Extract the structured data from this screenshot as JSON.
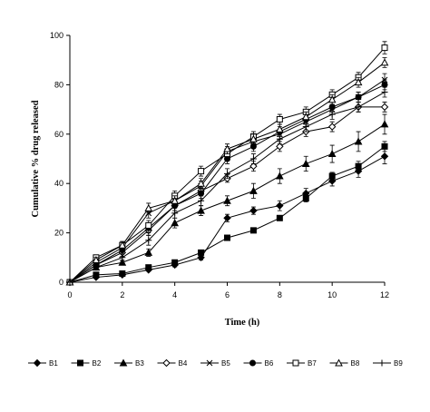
{
  "chart_data": {
    "type": "line",
    "title": "",
    "xlabel": "Time (h)",
    "ylabel": "Cumulative % drug released",
    "xlim": [
      0,
      12
    ],
    "ylim": [
      0,
      100
    ],
    "xticks": [
      "0",
      "2",
      "4",
      "6",
      "8",
      "10",
      "12"
    ],
    "yticks": [
      "0",
      "20",
      "40",
      "60",
      "80",
      "100"
    ],
    "grid": false,
    "legend_position": "bottom",
    "x": [
      0,
      1,
      2,
      3,
      4,
      5,
      6,
      7,
      8,
      9,
      10,
      11,
      12
    ],
    "series": [
      {
        "name": "B1",
        "marker": "filled-diamond",
        "values": [
          0,
          2,
          3,
          5,
          7,
          10,
          26,
          29,
          31,
          36,
          41,
          45,
          51
        ],
        "errors": [
          0,
          0.5,
          0.5,
          0.5,
          0.8,
          1,
          1.5,
          1.5,
          2,
          2,
          2,
          2.5,
          3
        ]
      },
      {
        "name": "B2",
        "marker": "filled-square",
        "values": [
          0,
          3,
          3.5,
          6,
          8,
          12,
          18,
          21,
          26,
          34,
          43,
          47,
          55
        ],
        "errors": [
          0,
          0.5,
          0.5,
          0.5,
          0.5,
          0.8,
          1,
          1,
          1,
          1.5,
          1.5,
          2,
          2
        ]
      },
      {
        "name": "B3",
        "marker": "filled-triangle",
        "values": [
          0,
          6,
          8,
          12,
          24,
          29,
          33,
          37,
          43,
          48,
          52,
          57,
          64
        ],
        "errors": [
          0,
          1,
          1,
          1.5,
          2,
          2,
          2,
          3,
          3,
          3,
          3.5,
          4,
          4
        ]
      },
      {
        "name": "B4",
        "marker": "open-diamond",
        "values": [
          0,
          7,
          12,
          21,
          31,
          37,
          42,
          47,
          55,
          61,
          63,
          71,
          71
        ],
        "errors": [
          0,
          1,
          1.5,
          2,
          2,
          2,
          1.5,
          2,
          2,
          2,
          2,
          2,
          2
        ]
      },
      {
        "name": "B5",
        "marker": "x",
        "values": [
          0,
          8,
          14,
          28,
          33,
          39,
          53,
          57,
          60,
          65,
          70,
          75,
          82
        ],
        "errors": [
          0,
          1,
          1.5,
          2,
          2,
          2,
          2,
          2,
          2,
          2,
          2,
          2,
          2.5
        ]
      },
      {
        "name": "B6",
        "marker": "filled-circle",
        "values": [
          0,
          7,
          13,
          22,
          31,
          36,
          50,
          55,
          61,
          66,
          71,
          75,
          80
        ],
        "errors": [
          0,
          1,
          1.5,
          2,
          2,
          2,
          2,
          2,
          2,
          2,
          2,
          2,
          2
        ]
      },
      {
        "name": "B7",
        "marker": "open-square",
        "values": [
          0,
          10,
          15,
          23,
          35,
          45,
          52,
          59,
          66,
          69,
          76,
          83,
          95
        ],
        "errors": [
          0,
          1,
          1.5,
          2,
          2,
          2,
          2,
          2,
          2,
          2,
          2,
          2,
          2.5
        ]
      },
      {
        "name": "B8",
        "marker": "open-triangle",
        "values": [
          0,
          9,
          15,
          30,
          33,
          40,
          54,
          58,
          62,
          67,
          74,
          81,
          89
        ],
        "errors": [
          0,
          1,
          1.5,
          2,
          2,
          2,
          2,
          2,
          2,
          2,
          2,
          2,
          2
        ]
      },
      {
        "name": "B9",
        "marker": "plus",
        "values": [
          0,
          6,
          10,
          17,
          28,
          33,
          44,
          50,
          58,
          63,
          68,
          71,
          77
        ],
        "errors": [
          0,
          1,
          1.5,
          2,
          2,
          2,
          2,
          2,
          2,
          2,
          2,
          2,
          2
        ]
      }
    ]
  }
}
